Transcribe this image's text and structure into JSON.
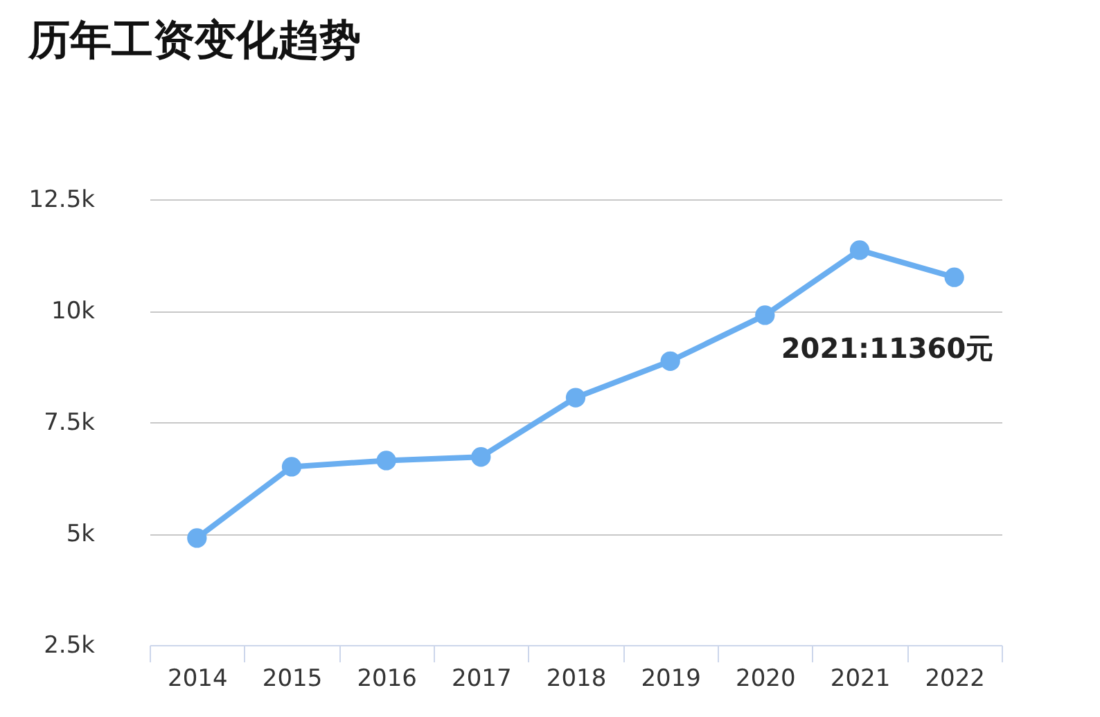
{
  "chart_data": {
    "type": "line",
    "title": "历年工资变化趋势",
    "categories": [
      "2014",
      "2015",
      "2016",
      "2017",
      "2018",
      "2019",
      "2020",
      "2021",
      "2022"
    ],
    "series": [
      {
        "color": "#6aaef0",
        "values": [
          4900,
          6500,
          6640,
          6720,
          8050,
          8870,
          9900,
          11360,
          10750
        ]
      }
    ],
    "ylim": [
      2500,
      12500
    ],
    "yticks": [
      {
        "value": 2500,
        "label": "2.5k"
      },
      {
        "value": 5000,
        "label": "5k"
      },
      {
        "value": 7500,
        "label": "7.5k"
      },
      {
        "value": 10000,
        "label": "10k"
      },
      {
        "value": 12500,
        "label": "12.5k"
      }
    ],
    "grid": "y",
    "marker": "circle",
    "annotations": [
      {
        "text": "2021:11360元",
        "x": "2021",
        "y": 11360
      }
    ]
  }
}
